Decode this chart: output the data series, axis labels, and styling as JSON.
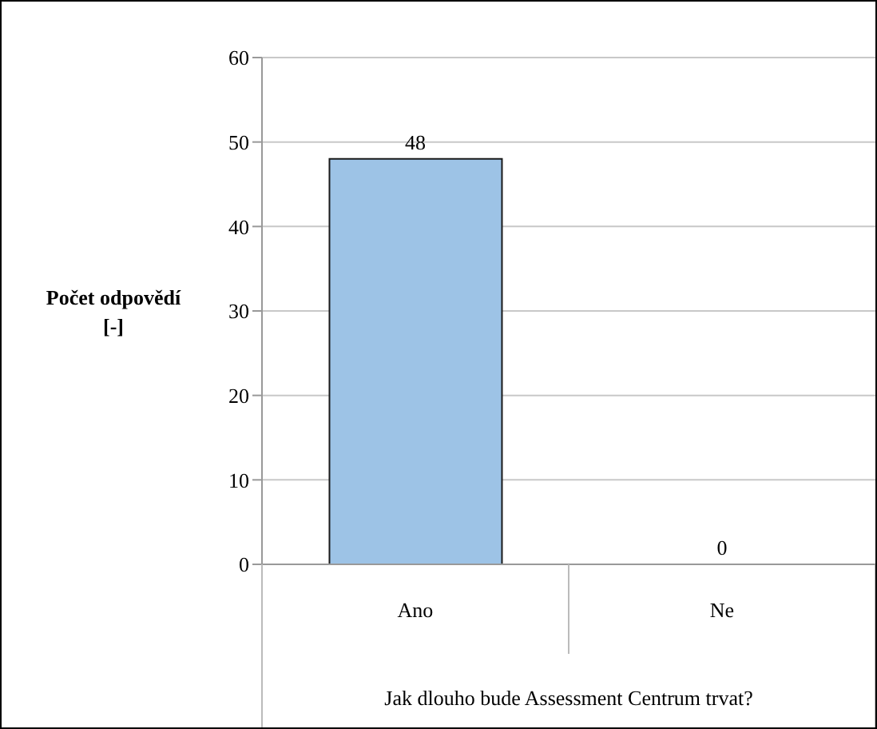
{
  "chart_data": {
    "type": "bar",
    "ylabel": "Počet odpovědí [-]",
    "xlabel": "Jak dlouho bude Assessment Centrum trvat?",
    "categories": [
      "Ano",
      "Ne"
    ],
    "values": [
      48,
      0
    ],
    "color": "#9dc3e6",
    "ylim": [
      0,
      60
    ],
    "yticks": [
      0,
      10,
      20,
      30,
      40,
      50,
      60
    ],
    "grid": "y",
    "data_labels": true
  }
}
